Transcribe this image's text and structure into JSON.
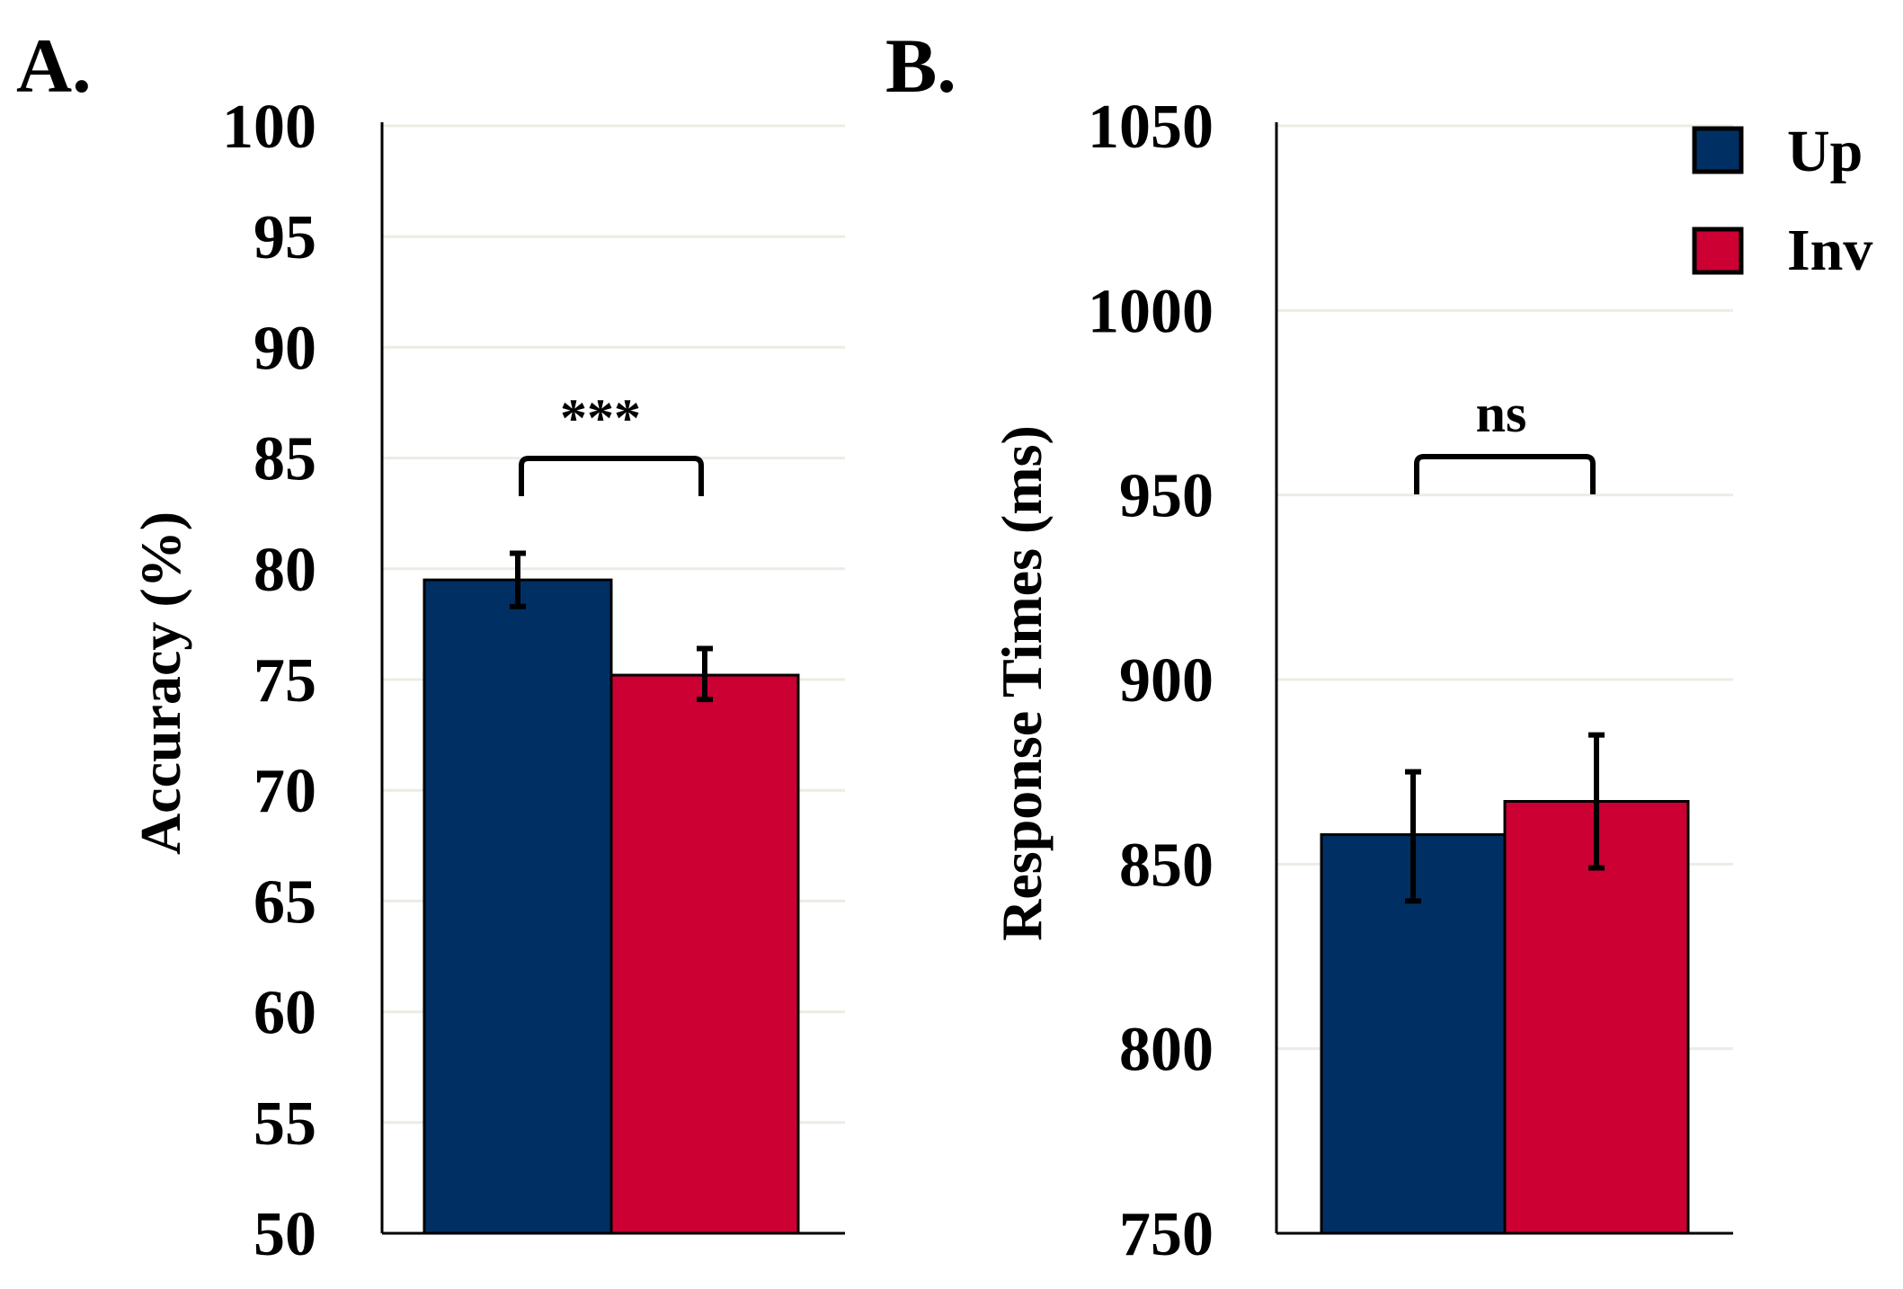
{
  "figure": {
    "background": "#ffffff"
  },
  "legend": [
    {
      "label": "Up",
      "color": "#003063"
    },
    {
      "label": "Inv",
      "color": "#cc0033"
    }
  ],
  "chart_data": [
    {
      "type": "bar",
      "panel_label": "A.",
      "title": "",
      "xlabel": "",
      "ylabel": "Accuracy (%)",
      "ylim": [
        50,
        100
      ],
      "yticks": [
        50,
        55,
        60,
        65,
        70,
        75,
        80,
        85,
        90,
        95,
        100
      ],
      "grid": true,
      "series": [
        {
          "name": "Up",
          "value": 79.5,
          "error_low": 78.3,
          "error_high": 80.7,
          "color": "#003063"
        },
        {
          "name": "Inv",
          "value": 75.2,
          "error_low": 74.1,
          "error_high": 76.4,
          "color": "#cc0033"
        }
      ],
      "annotation": "***"
    },
    {
      "type": "bar",
      "panel_label": "B.",
      "title": "",
      "xlabel": "",
      "ylabel": "Response Times (ms)",
      "ylim": [
        750,
        1050
      ],
      "yticks": [
        750,
        800,
        850,
        900,
        950,
        1000,
        1050
      ],
      "grid": true,
      "series": [
        {
          "name": "Up",
          "value": 858,
          "error_low": 840,
          "error_high": 875,
          "color": "#003063"
        },
        {
          "name": "Inv",
          "value": 867,
          "error_low": 849,
          "error_high": 885,
          "color": "#cc0033"
        }
      ],
      "annotation": "ns"
    }
  ]
}
